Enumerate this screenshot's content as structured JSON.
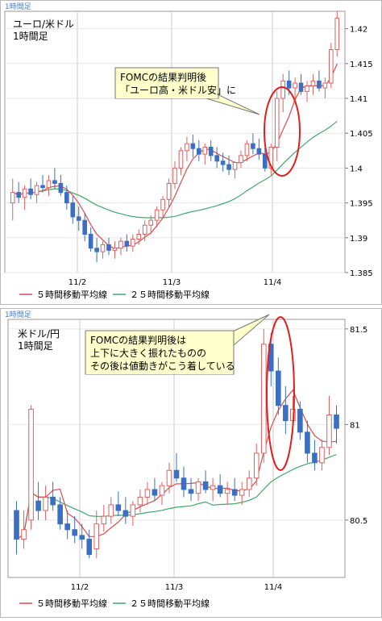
{
  "chart_data": [
    {
      "type": "candlestick",
      "tab_label": "1時間足",
      "pair_label": "ユーロ/米ドル",
      "timeframe_label": "1時間足",
      "categories": [
        "11/2",
        "11/3",
        "11/4"
      ],
      "y_ticks": [
        "1.385",
        "1.39",
        "1.395",
        "1.4",
        "1.405",
        "1.41",
        "1.415",
        "1.42"
      ],
      "ylim": [
        1.385,
        1.4225
      ],
      "legend": {
        "ma5": "５時間移動平均線",
        "ma25": "２５時間移動平均線"
      },
      "annotation": {
        "lines": [
          "FOMCの結果判明後",
          "「ユーロ高・米ドル安」に"
        ]
      },
      "ohlc": [
        [
          1.395,
          1.3985,
          1.3925,
          1.3965
        ],
        [
          1.3965,
          1.398,
          1.395,
          1.3958
        ],
        [
          1.3958,
          1.3975,
          1.394,
          1.397
        ],
        [
          1.397,
          1.3985,
          1.3955,
          1.3962
        ],
        [
          1.3962,
          1.398,
          1.395,
          1.3975
        ],
        [
          1.3975,
          1.399,
          1.3965,
          1.3972
        ],
        [
          1.3972,
          1.399,
          1.396,
          1.3982
        ],
        [
          1.3982,
          1.4,
          1.397,
          1.3978
        ],
        [
          1.3978,
          1.399,
          1.396,
          1.3965
        ],
        [
          1.3965,
          1.3975,
          1.394,
          1.395
        ],
        [
          1.395,
          1.396,
          1.392,
          1.393
        ],
        [
          1.393,
          1.3945,
          1.391,
          1.3925
        ],
        [
          1.3925,
          1.3935,
          1.3895,
          1.3905
        ],
        [
          1.3905,
          1.3915,
          1.388,
          1.3885
        ],
        [
          1.3885,
          1.39,
          1.3865,
          1.388
        ],
        [
          1.388,
          1.3895,
          1.387,
          1.389
        ],
        [
          1.389,
          1.39,
          1.3875,
          1.3882
        ],
        [
          1.3882,
          1.3895,
          1.387,
          1.3885
        ],
        [
          1.3885,
          1.39,
          1.3875,
          1.3895
        ],
        [
          1.3895,
          1.3905,
          1.388,
          1.3888
        ],
        [
          1.3888,
          1.3905,
          1.388,
          1.3898
        ],
        [
          1.3898,
          1.3912,
          1.389,
          1.3905
        ],
        [
          1.3905,
          1.3925,
          1.3895,
          1.3918
        ],
        [
          1.3918,
          1.3932,
          1.3905,
          1.3925
        ],
        [
          1.3925,
          1.3945,
          1.3915,
          1.394
        ],
        [
          1.394,
          1.396,
          1.393,
          1.3955
        ],
        [
          1.3955,
          1.3985,
          1.3945,
          1.3978
        ],
        [
          1.3978,
          1.401,
          1.397,
          1.4
        ],
        [
          1.4,
          1.403,
          1.399,
          1.4025
        ],
        [
          1.4025,
          1.4045,
          1.401,
          1.4035
        ],
        [
          1.4035,
          1.4048,
          1.4015,
          1.4028
        ],
        [
          1.4028,
          1.404,
          1.401,
          1.402
        ],
        [
          1.402,
          1.4035,
          1.4005,
          1.403
        ],
        [
          1.403,
          1.404,
          1.401,
          1.4018
        ],
        [
          1.4018,
          1.403,
          1.4,
          1.401
        ],
        [
          1.401,
          1.4022,
          1.3995,
          1.4005
        ],
        [
          1.4005,
          1.4018,
          1.399,
          1.3998
        ],
        [
          1.3998,
          1.401,
          1.3985,
          1.4008
        ],
        [
          1.4008,
          1.4025,
          1.4,
          1.4018
        ],
        [
          1.4018,
          1.404,
          1.401,
          1.4035
        ],
        [
          1.4035,
          1.405,
          1.402,
          1.4028
        ],
        [
          1.4028,
          1.4042,
          1.4012,
          1.402
        ],
        [
          1.402,
          1.403,
          1.3995,
          1.4
        ],
        [
          1.4,
          1.4035,
          1.399,
          1.403
        ],
        [
          1.403,
          1.411,
          1.401,
          1.41
        ],
        [
          1.41,
          1.4135,
          1.408,
          1.4125
        ],
        [
          1.4125,
          1.414,
          1.4105,
          1.4115
        ],
        [
          1.4115,
          1.413,
          1.41,
          1.4122
        ],
        [
          1.4122,
          1.4135,
          1.4105,
          1.411
        ],
        [
          1.411,
          1.4125,
          1.4095,
          1.4118
        ],
        [
          1.4118,
          1.4135,
          1.4105,
          1.4125
        ],
        [
          1.4125,
          1.414,
          1.411,
          1.4115
        ],
        [
          1.4115,
          1.413,
          1.41,
          1.4122
        ],
        [
          1.4122,
          1.418,
          1.4115,
          1.417
        ],
        [
          1.417,
          1.4225,
          1.416,
          1.4215
        ]
      ]
    },
    {
      "type": "candlestick",
      "tab_label": "1時間足",
      "pair_label": "米ドル/円",
      "timeframe_label": "1時間足",
      "categories": [
        "11/2",
        "11/3",
        "11/4"
      ],
      "y_ticks": [
        "80.5",
        "81",
        "81.5"
      ],
      "ylim": [
        80.2,
        81.55
      ],
      "legend": {
        "ma5": "５時間移動平均線",
        "ma25": "２５時間移動平均線"
      },
      "annotation": {
        "lines": [
          "FOMCの結果判明後は",
          "上下に大きく振れたものの",
          "その後は値動きがこう着している"
        ]
      },
      "ohlc": [
        [
          80.55,
          80.6,
          80.32,
          80.4
        ],
        [
          80.4,
          80.55,
          80.35,
          80.45
        ],
        [
          80.5,
          81.1,
          80.45,
          81.08
        ],
        [
          80.6,
          80.7,
          80.5,
          80.55
        ],
        [
          80.55,
          80.68,
          80.5,
          80.62
        ],
        [
          80.62,
          80.7,
          80.55,
          80.58
        ],
        [
          80.58,
          80.62,
          80.45,
          80.48
        ],
        [
          80.48,
          80.55,
          80.4,
          80.45
        ],
        [
          80.45,
          80.52,
          80.38,
          80.42
        ],
        [
          80.42,
          80.48,
          80.35,
          80.4
        ],
        [
          80.4,
          80.45,
          80.3,
          80.32
        ],
        [
          80.35,
          80.55,
          80.3,
          80.48
        ],
        [
          80.48,
          80.58,
          80.44,
          80.52
        ],
        [
          80.52,
          80.62,
          80.48,
          80.58
        ],
        [
          80.58,
          80.65,
          80.52,
          80.55
        ],
        [
          80.55,
          80.62,
          80.48,
          80.52
        ],
        [
          80.52,
          80.6,
          80.47,
          80.58
        ],
        [
          80.58,
          80.66,
          80.54,
          80.62
        ],
        [
          80.62,
          80.7,
          80.58,
          80.66
        ],
        [
          80.66,
          80.72,
          80.6,
          80.63
        ],
        [
          80.63,
          80.7,
          80.58,
          80.68
        ],
        [
          80.68,
          80.8,
          80.64,
          80.76
        ],
        [
          80.76,
          80.85,
          80.7,
          80.72
        ],
        [
          80.72,
          80.78,
          80.62,
          80.66
        ],
        [
          80.66,
          80.72,
          80.6,
          80.64
        ],
        [
          80.64,
          80.72,
          80.6,
          80.7
        ],
        [
          80.7,
          80.76,
          80.64,
          80.66
        ],
        [
          80.66,
          80.72,
          80.6,
          80.68
        ],
        [
          80.68,
          80.74,
          80.62,
          80.64
        ],
        [
          80.64,
          80.7,
          80.58,
          80.66
        ],
        [
          80.66,
          80.72,
          80.6,
          80.63
        ],
        [
          80.63,
          80.7,
          80.58,
          80.66
        ],
        [
          80.66,
          80.76,
          80.62,
          80.72
        ],
        [
          80.72,
          80.9,
          80.68,
          80.85
        ],
        [
          80.85,
          81.5,
          80.8,
          81.42
        ],
        [
          81.42,
          81.48,
          81.2,
          81.28
        ],
        [
          81.28,
          81.35,
          81.05,
          81.1
        ],
        [
          81.1,
          81.2,
          80.95,
          81.02
        ],
        [
          81.02,
          81.15,
          80.95,
          81.08
        ],
        [
          81.08,
          81.12,
          80.92,
          80.96
        ],
        [
          80.96,
          81.02,
          80.8,
          80.85
        ],
        [
          80.85,
          80.92,
          80.76,
          80.8
        ],
        [
          80.8,
          80.92,
          80.76,
          80.88
        ],
        [
          80.88,
          81.15,
          80.84,
          81.05
        ],
        [
          81.05,
          81.1,
          80.9,
          80.98
        ]
      ]
    }
  ]
}
